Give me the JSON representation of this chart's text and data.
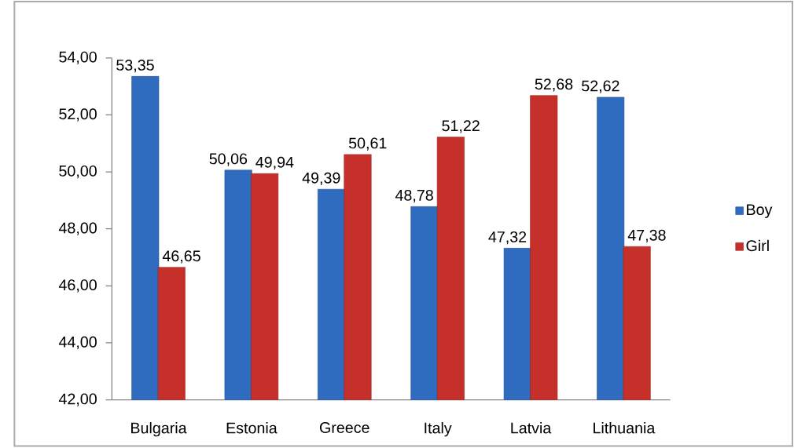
{
  "chart_data": {
    "type": "bar",
    "categories": [
      "Bulgaria",
      "Estonia",
      "Greece",
      "Italy",
      "Latvia",
      "Lithuania"
    ],
    "series": [
      {
        "name": "Boy",
        "color": "#2f6cc0",
        "values": [
          53.35,
          50.06,
          49.39,
          48.78,
          47.32,
          52.62
        ],
        "value_labels": [
          "53,35",
          "50,06",
          "49,39",
          "48,78",
          "47,32",
          "52,62"
        ]
      },
      {
        "name": "Girl",
        "color": "#c6302b",
        "values": [
          46.65,
          49.94,
          50.61,
          51.22,
          52.68,
          47.38
        ],
        "value_labels": [
          "46,65",
          "49,94",
          "50,61",
          "51,22",
          "52,68",
          "47,38"
        ]
      }
    ],
    "ylim": [
      42,
      54
    ],
    "yticks": [
      {
        "value": 42,
        "label": "42,00"
      },
      {
        "value": 44,
        "label": "44,00"
      },
      {
        "value": 46,
        "label": "46,00"
      },
      {
        "value": 48,
        "label": "48,00"
      },
      {
        "value": 50,
        "label": "50,00"
      },
      {
        "value": 52,
        "label": "52,00"
      },
      {
        "value": 54,
        "label": "54,00"
      }
    ],
    "legend": "right"
  }
}
